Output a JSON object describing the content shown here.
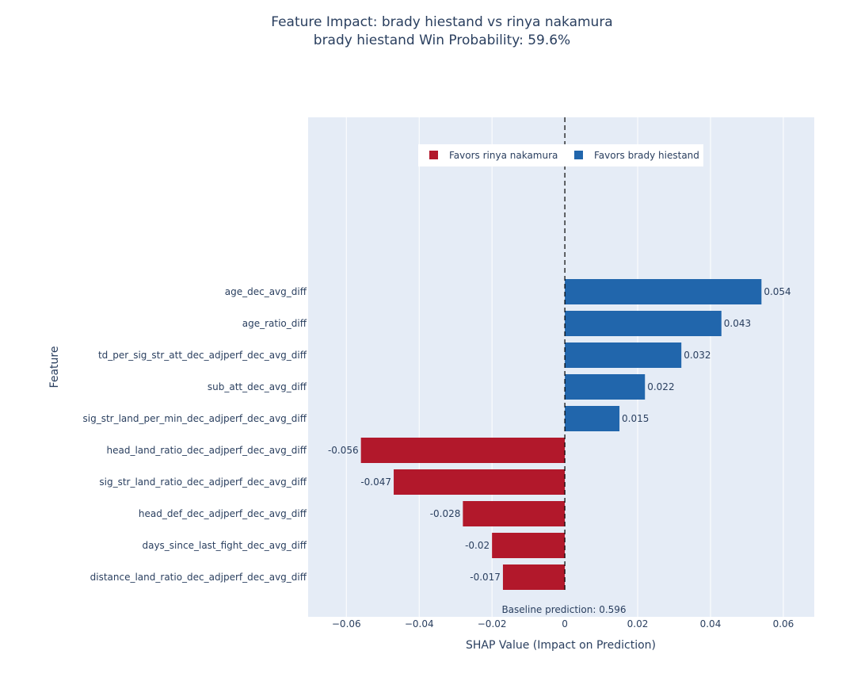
{
  "chart_data": {
    "type": "bar",
    "orientation": "horizontal",
    "title": "Feature Impact: brady hiestand vs rinya nakamura",
    "subtitle": "brady hiestand Win Probability: 59.6%",
    "xlabel": "SHAP Value (Impact on Prediction)",
    "ylabel": "Feature",
    "xlim": [
      -0.0705,
      0.0685
    ],
    "x_ticks": [
      -0.06,
      -0.04,
      -0.02,
      0,
      0.02,
      0.04,
      0.06
    ],
    "x_tick_labels": [
      "−0.06",
      "−0.04",
      "−0.02",
      "0",
      "0.02",
      "0.04",
      "0.06"
    ],
    "grid": true,
    "legend_position": "top-center",
    "reference_line": {
      "x": 0,
      "style": "dashed"
    },
    "annotation": "Baseline prediction: 0.596",
    "series": [
      {
        "name": "Favors rinya nakamura",
        "color": "#b2182b"
      },
      {
        "name": "Favors brady hiestand",
        "color": "#2166ac"
      }
    ],
    "categories": [
      "age_dec_avg_diff",
      "age_ratio_diff",
      "td_per_sig_str_att_dec_adjperf_dec_avg_diff",
      "sub_att_dec_avg_diff",
      "sig_str_land_per_min_dec_adjperf_dec_avg_diff",
      "head_land_ratio_dec_adjperf_dec_avg_diff",
      "sig_str_land_ratio_dec_adjperf_dec_avg_diff",
      "head_def_dec_adjperf_dec_avg_diff",
      "days_since_last_fight_dec_avg_diff",
      "distance_land_ratio_dec_adjperf_dec_avg_diff"
    ],
    "values": [
      0.054,
      0.043,
      0.032,
      0.022,
      0.015,
      -0.056,
      -0.047,
      -0.028,
      -0.02,
      -0.017
    ],
    "value_labels": [
      "0.054",
      "0.043",
      "0.032",
      "0.022",
      "0.015",
      "-0.056",
      "-0.047",
      "-0.028",
      "-0.02",
      "-0.017"
    ],
    "colors": {
      "positive": "#2166ac",
      "negative": "#b2182b",
      "plot_background": "#e5ecf6",
      "text": "#2a3f5f"
    }
  }
}
